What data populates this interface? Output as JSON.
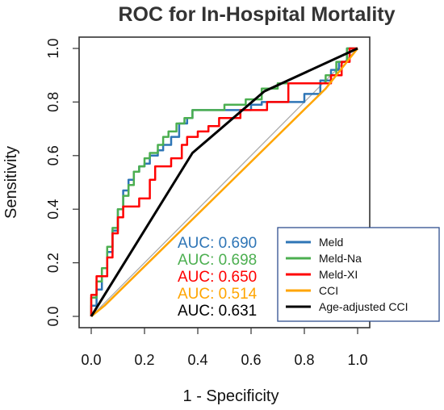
{
  "chart_data": {
    "type": "line",
    "title": "ROC for In-Hospital Mortality",
    "xlabel": "1 - Specificity",
    "ylabel": "Sensitivity",
    "xlim": [
      0,
      1
    ],
    "ylim": [
      0,
      1
    ],
    "x_ticks": [
      "0.0",
      "0.2",
      "0.4",
      "0.6",
      "0.8",
      "1.0"
    ],
    "y_ticks": [
      "0.0",
      "0.2",
      "0.4",
      "0.6",
      "0.8",
      "1.0"
    ],
    "reference_line": {
      "x": [
        0,
        1
      ],
      "y": [
        0,
        1
      ],
      "color": "#aaaaaa"
    },
    "legend_position": "bottom-right",
    "series": [
      {
        "name": "Meld",
        "color": "#2e75b6",
        "auc_label": "AUC: 0.690",
        "x": [
          0,
          0,
          0.02,
          0.02,
          0.04,
          0.04,
          0.06,
          0.06,
          0.08,
          0.08,
          0.1,
          0.1,
          0.12,
          0.12,
          0.14,
          0.14,
          0.16,
          0.16,
          0.18,
          0.18,
          0.2,
          0.2,
          0.22,
          0.22,
          0.25,
          0.25,
          0.27,
          0.27,
          0.3,
          0.3,
          0.33,
          0.33,
          0.36,
          0.36,
          0.38,
          0.38,
          0.42,
          0.42,
          0.48,
          0.6,
          0.6,
          0.64,
          0.64,
          0.8,
          0.8,
          0.86,
          0.86,
          0.9,
          0.9,
          0.93,
          0.93,
          0.96,
          0.96,
          1.0
        ],
        "y": [
          0,
          0.04,
          0.04,
          0.1,
          0.1,
          0.15,
          0.15,
          0.24,
          0.24,
          0.32,
          0.32,
          0.4,
          0.4,
          0.47,
          0.47,
          0.51,
          0.51,
          0.54,
          0.54,
          0.56,
          0.56,
          0.57,
          0.57,
          0.6,
          0.6,
          0.62,
          0.62,
          0.64,
          0.64,
          0.67,
          0.67,
          0.72,
          0.72,
          0.74,
          0.74,
          0.77,
          0.77,
          0.77,
          0.77,
          0.77,
          0.79,
          0.79,
          0.8,
          0.8,
          0.83,
          0.83,
          0.88,
          0.88,
          0.92,
          0.92,
          0.95,
          0.95,
          1.0,
          1.0
        ]
      },
      {
        "name": "Meld-Na",
        "color": "#4caf50",
        "auc_label": "AUC: 0.698",
        "x": [
          0,
          0,
          0.02,
          0.02,
          0.04,
          0.04,
          0.06,
          0.06,
          0.08,
          0.08,
          0.1,
          0.1,
          0.12,
          0.12,
          0.14,
          0.14,
          0.16,
          0.16,
          0.18,
          0.18,
          0.2,
          0.2,
          0.22,
          0.22,
          0.25,
          0.25,
          0.27,
          0.27,
          0.29,
          0.29,
          0.32,
          0.32,
          0.35,
          0.35,
          0.38,
          0.38,
          0.42,
          0.42,
          0.5,
          0.5,
          0.58,
          0.58,
          0.64,
          0.64,
          0.7,
          0.7,
          0.8,
          0.8,
          0.88,
          0.88,
          0.92,
          0.92,
          0.96,
          0.96,
          1.0
        ],
        "y": [
          0,
          0.07,
          0.07,
          0.13,
          0.13,
          0.18,
          0.18,
          0.26,
          0.26,
          0.33,
          0.33,
          0.4,
          0.4,
          0.45,
          0.45,
          0.49,
          0.49,
          0.54,
          0.54,
          0.56,
          0.56,
          0.59,
          0.59,
          0.61,
          0.61,
          0.64,
          0.64,
          0.67,
          0.67,
          0.69,
          0.69,
          0.72,
          0.72,
          0.74,
          0.74,
          0.77,
          0.77,
          0.77,
          0.77,
          0.79,
          0.79,
          0.81,
          0.81,
          0.85,
          0.85,
          0.87,
          0.87,
          0.87,
          0.87,
          0.9,
          0.9,
          0.95,
          0.95,
          1.0,
          1.0
        ]
      },
      {
        "name": "Meld-XI",
        "color": "#ff0000",
        "auc_label": "AUC: 0.650",
        "x": [
          0,
          0,
          0.02,
          0.02,
          0.06,
          0.06,
          0.08,
          0.08,
          0.1,
          0.1,
          0.12,
          0.12,
          0.18,
          0.18,
          0.22,
          0.22,
          0.24,
          0.24,
          0.3,
          0.3,
          0.34,
          0.34,
          0.36,
          0.36,
          0.4,
          0.4,
          0.44,
          0.44,
          0.48,
          0.48,
          0.56,
          0.56,
          0.66,
          0.66,
          0.74,
          0.74,
          0.9,
          0.9,
          0.94,
          0.94,
          0.97,
          0.97,
          1.0
        ],
        "y": [
          0,
          0.08,
          0.08,
          0.15,
          0.15,
          0.22,
          0.22,
          0.31,
          0.31,
          0.37,
          0.37,
          0.41,
          0.41,
          0.44,
          0.44,
          0.51,
          0.51,
          0.56,
          0.56,
          0.59,
          0.59,
          0.64,
          0.64,
          0.67,
          0.67,
          0.69,
          0.69,
          0.71,
          0.71,
          0.74,
          0.74,
          0.77,
          0.77,
          0.8,
          0.8,
          0.87,
          0.87,
          0.9,
          0.9,
          0.95,
          0.95,
          1.0,
          1.0
        ]
      },
      {
        "name": "CCI",
        "color": "#ffa500",
        "auc_label": "AUC: 0.514",
        "x": [
          0,
          0.05,
          0.88,
          1.0
        ],
        "y": [
          0,
          0.04,
          0.85,
          1.0
        ]
      },
      {
        "name": "Age-adjusted CCI",
        "color": "#000000",
        "auc_label": "AUC: 0.631",
        "x": [
          0,
          0.38,
          0.65,
          1.0
        ],
        "y": [
          0,
          0.61,
          0.84,
          1.0
        ]
      }
    ]
  }
}
